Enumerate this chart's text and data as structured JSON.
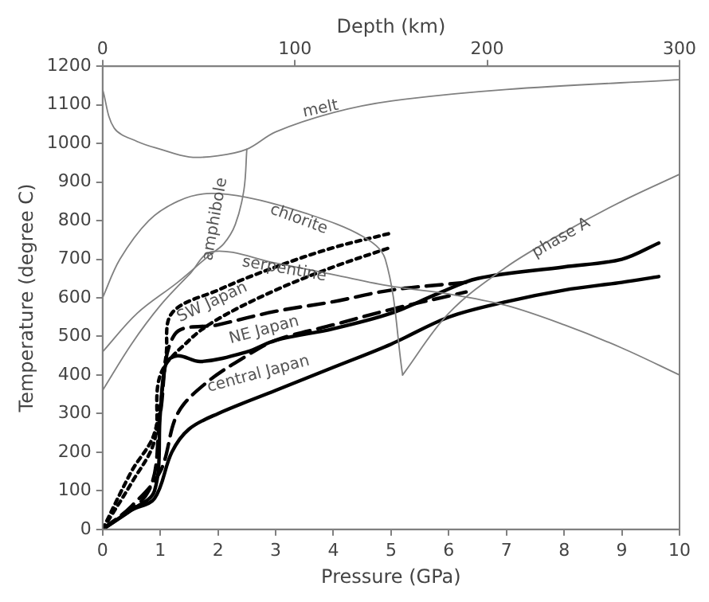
{
  "chart_data": {
    "type": "line",
    "xlabel": "Pressure (GPa)",
    "ylabel": "Temperature (degree C)",
    "x2label": "Depth (km)",
    "xlim": [
      0,
      10
    ],
    "xticks": [
      0,
      1,
      2,
      3,
      4,
      5,
      6,
      7,
      8,
      9,
      10
    ],
    "ylim": [
      0,
      1200
    ],
    "yticks": [
      0,
      100,
      200,
      300,
      400,
      500,
      600,
      700,
      800,
      900,
      1000,
      1100,
      1200
    ],
    "x2lim": [
      0,
      300
    ],
    "x2ticks": [
      0,
      100,
      200,
      300
    ],
    "grid": false,
    "legend": false,
    "marker": "none",
    "series": [
      {
        "color": "#808080",
        "line_style": "solid",
        "x": [
          0,
          0.2,
          0.6,
          1,
          1.5,
          2,
          2.5,
          3,
          4,
          5,
          7,
          10
        ],
        "values": [
          1140,
          1040,
          1005,
          985,
          965,
          968,
          985,
          1030,
          1080,
          1110,
          1140,
          1165
        ]
      },
      {
        "color": "#808080",
        "line_style": "solid",
        "x": [
          2.5,
          2.45,
          2.3,
          2.1,
          1.85,
          1.3,
          0.6,
          0
        ],
        "values": [
          985,
          880,
          790,
          740,
          710,
          640,
          560,
          460
        ]
      },
      {
        "color": "#808080",
        "line_style": "solid",
        "x": [
          0,
          0.3,
          0.8,
          1.3,
          1.8,
          2.5,
          3.5,
          4.5,
          4.9,
          5.2
        ],
        "values": [
          600,
          700,
          800,
          850,
          870,
          860,
          820,
          760,
          700,
          400
        ]
      },
      {
        "color": "#808080",
        "line_style": "solid",
        "x": [
          0,
          0.5,
          1,
          1.5,
          1.9,
          3,
          4,
          5,
          6,
          7,
          8,
          9,
          10
        ],
        "values": [
          360,
          480,
          580,
          660,
          720,
          690,
          660,
          630,
          610,
          580,
          530,
          470,
          400
        ]
      },
      {
        "color": "#808080",
        "line_style": "solid",
        "x": [
          5.2,
          6,
          7,
          8,
          9,
          10
        ],
        "values": [
          400,
          560,
          680,
          770,
          850,
          920
        ]
      },
      {
        "color": "#000000",
        "line_style": "dotted",
        "x": [
          0,
          0.5,
          0.9,
          1.1,
          1.2,
          2,
          3,
          4,
          4.98
        ],
        "values": [
          0,
          150,
          250,
          450,
          560,
          620,
          680,
          730,
          767
        ]
      },
      {
        "color": "#000000",
        "line_style": "dotted",
        "x": [
          0,
          0.5,
          0.9,
          1,
          1.5,
          2,
          3,
          4,
          4.98
        ],
        "values": [
          0,
          120,
          230,
          400,
          490,
          545,
          620,
          680,
          730
        ]
      },
      {
        "color": "#000000",
        "line_style": "dashed",
        "x": [
          0,
          0.8,
          1,
          1.25,
          2,
          3,
          4,
          5,
          6.3
        ],
        "values": [
          0,
          100,
          300,
          505,
          530,
          565,
          590,
          620,
          640
        ]
      },
      {
        "color": "#000000",
        "line_style": "dashed",
        "x": [
          0,
          0.5,
          1,
          1.3,
          1.8,
          2.5,
          3,
          4,
          5,
          6.3
        ],
        "values": [
          0,
          60,
          150,
          300,
          380,
          450,
          490,
          530,
          570,
          615
        ]
      },
      {
        "color": "#000000",
        "line_style": "solid",
        "x": [
          0,
          0.5,
          0.9,
          1,
          1.1,
          1.3,
          1.7,
          2.5,
          3,
          4,
          5,
          5.8,
          6.5,
          8,
          9,
          9.64
        ],
        "values": [
          0,
          50,
          100,
          300,
          430,
          450,
          435,
          460,
          490,
          520,
          560,
          610,
          650,
          680,
          700,
          742
        ]
      },
      {
        "color": "#000000",
        "line_style": "solid",
        "x": [
          0,
          0.5,
          0.9,
          1.2,
          1.5,
          2,
          3,
          4,
          5,
          6,
          7,
          8,
          9,
          9.64
        ],
        "values": [
          0,
          50,
          80,
          200,
          260,
          300,
          360,
          420,
          480,
          550,
          590,
          620,
          640,
          655
        ]
      }
    ],
    "annotations": [
      {
        "text": "melt",
        "x": 3.78,
        "y": 1089
      },
      "amphibole",
      {
        "text": "chlorite",
        "x": 3.4,
        "y": 803
      },
      {
        "text": "serpentine",
        "x": 3.15,
        "y": 674
      },
      "SW Japan",
      "NE Japan",
      "central Japan",
      {
        "text": "phase A",
        "x": 7.95,
        "y": 755
      }
    ]
  }
}
